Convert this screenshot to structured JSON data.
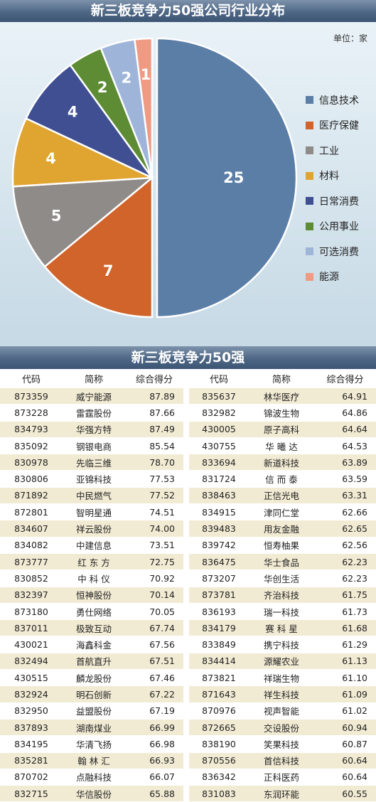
{
  "chart_title": "新三板竞争力50强公司行业分布",
  "unit_label": "单位：家",
  "colors": {
    "banner": "#4e6785",
    "chart_bg": "#dce8ef",
    "row_band": "#f2ebd4"
  },
  "chart_data": {
    "type": "pie",
    "title": "新三板竞争力50强公司行业分布",
    "unit": "单位：家",
    "legend_position": "right",
    "slices": [
      {
        "label": "信息技术",
        "value": 25,
        "color": "#5b7ea7"
      },
      {
        "label": "医疗保健",
        "value": 7,
        "color": "#d0642b"
      },
      {
        "label": "工业",
        "value": 5,
        "color": "#8f8b88"
      },
      {
        "label": "材料",
        "value": 4,
        "color": "#e0a431"
      },
      {
        "label": "日常消费",
        "value": 4,
        "color": "#3f4f92"
      },
      {
        "label": "公用事业",
        "value": 2,
        "color": "#5d8c35"
      },
      {
        "label": "可选消费",
        "value": 2,
        "color": "#9eb4d9"
      },
      {
        "label": "能源",
        "value": 1,
        "color": "#ef9a83"
      }
    ]
  },
  "table": {
    "title": "新三板竞争力50强",
    "headers": [
      "代码",
      "简称",
      "综合得分"
    ],
    "left_rows": [
      [
        "873359",
        "威宁能源",
        "87.89"
      ],
      [
        "873228",
        "雷霆股份",
        "87.66"
      ],
      [
        "834793",
        "华强方特",
        "87.49"
      ],
      [
        "835092",
        "钢银电商",
        "85.54"
      ],
      [
        "830978",
        "先临三维",
        "78.70"
      ],
      [
        "830806",
        "亚锦科技",
        "77.53"
      ],
      [
        "871892",
        "中民燃气",
        "77.52"
      ],
      [
        "872801",
        "智明星通",
        "74.51"
      ],
      [
        "834607",
        "祥云股份",
        "74.00"
      ],
      [
        "834082",
        "中建信息",
        "73.51"
      ],
      [
        "873777",
        "红 东 方",
        "72.75"
      ],
      [
        "830852",
        "中 科 仪",
        "70.92"
      ],
      [
        "832397",
        "恒神股份",
        "70.14"
      ],
      [
        "873180",
        "勇仕网络",
        "70.05"
      ],
      [
        "837011",
        "极致互动",
        "67.74"
      ],
      [
        "430021",
        "海鑫科金",
        "67.56"
      ],
      [
        "832494",
        "首航直升",
        "67.51"
      ],
      [
        "430515",
        "麟龙股份",
        "67.46"
      ],
      [
        "832924",
        "明石创新",
        "67.22"
      ],
      [
        "832950",
        "益盟股份",
        "67.19"
      ],
      [
        "837893",
        "湖南煤业",
        "66.99"
      ],
      [
        "834195",
        "华清飞扬",
        "66.98"
      ],
      [
        "835281",
        "翰 林 汇",
        "66.93"
      ],
      [
        "870702",
        "点融科技",
        "66.07"
      ],
      [
        "832715",
        "华信股份",
        "65.88"
      ]
    ],
    "right_rows": [
      [
        "835637",
        "林华医疗",
        "64.91"
      ],
      [
        "832982",
        "锦波生物",
        "64.86"
      ],
      [
        "430005",
        "原子高科",
        "64.64"
      ],
      [
        "430755",
        "华 曦 达",
        "64.53"
      ],
      [
        "833694",
        "新道科技",
        "63.89"
      ],
      [
        "831724",
        "信 而 泰",
        "63.59"
      ],
      [
        "838463",
        "正信光电",
        "63.31"
      ],
      [
        "834915",
        "津同仁堂",
        "62.66"
      ],
      [
        "839483",
        "用友金融",
        "62.65"
      ],
      [
        "839742",
        "恒寿柚果",
        "62.56"
      ],
      [
        "836475",
        "华士食品",
        "62.23"
      ],
      [
        "873207",
        "华创生活",
        "62.23"
      ],
      [
        "873781",
        "齐治科技",
        "61.75"
      ],
      [
        "836193",
        "瑞一科技",
        "61.73"
      ],
      [
        "834179",
        "赛 科 星",
        "61.68"
      ],
      [
        "833849",
        "携宁科技",
        "61.29"
      ],
      [
        "834414",
        "源耀农业",
        "61.13"
      ],
      [
        "873821",
        "祥瑞生物",
        "61.10"
      ],
      [
        "871643",
        "祥生科技",
        "61.09"
      ],
      [
        "870976",
        "视声智能",
        "61.02"
      ],
      [
        "872665",
        "交设股份",
        "60.94"
      ],
      [
        "838190",
        "笑果科技",
        "60.87"
      ],
      [
        "870556",
        "首信科技",
        "60.64"
      ],
      [
        "836342",
        "正科医药",
        "60.64"
      ],
      [
        "831083",
        "东润环能",
        "60.55"
      ]
    ]
  }
}
